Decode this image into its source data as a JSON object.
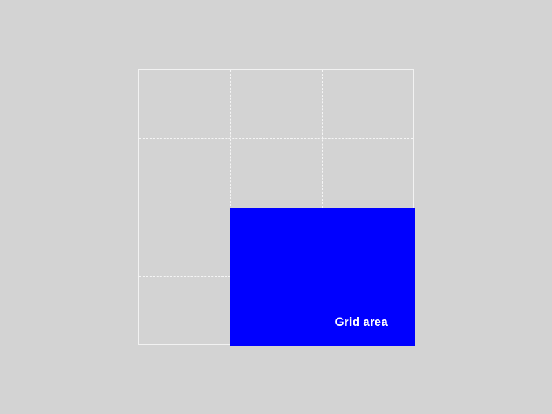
{
  "background_color": "#d3d3d3",
  "grid": {
    "columns": 3,
    "rows": 4,
    "line_color": "#f5f5f5",
    "border_color": "#f2f2f2"
  },
  "grid_area": {
    "label": "Grid area",
    "color": "#0000ff",
    "label_color": "#ffffff",
    "column_start": 2,
    "column_end": 4,
    "row_start": 3,
    "row_end": 5
  }
}
